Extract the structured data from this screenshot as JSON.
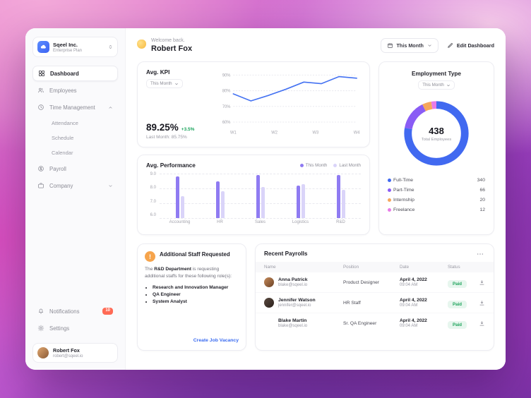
{
  "sidebar": {
    "workspace": {
      "name": "Sqeel Inc.",
      "plan": "Enterprise Plan"
    },
    "nav": {
      "dashboard": "Dashboard",
      "employees": "Employees",
      "time_management": "Time Management",
      "attendance": "Attendance",
      "schedule": "Schedule",
      "calendar": "Calendar",
      "payroll": "Payroll",
      "company": "Company",
      "notifications": "Notifications",
      "notifications_badge": "10",
      "settings": "Settings"
    },
    "user": {
      "name": "Robert Fox",
      "email": "robert@sqeel.io"
    }
  },
  "header": {
    "welcome": "Welcome back.",
    "user_name": "Robert Fox",
    "period_button": "This Month",
    "edit_button": "Edit Dashboard"
  },
  "kpi": {
    "title": "Avg. KPI",
    "filter": "This Month",
    "value": "89.25%",
    "delta": "+3.5%",
    "last_month": "Last Month: 85.75%"
  },
  "performance": {
    "title": "Avg. Performance",
    "legend_this": "This Month",
    "legend_last": "Last Month"
  },
  "employment": {
    "title": "Employment Type",
    "filter": "This Month",
    "total": "438",
    "total_label": "Total Employees",
    "legend": [
      {
        "label": "Full-Time",
        "value": "340",
        "color": "#4169F0"
      },
      {
        "label": "Part-Time",
        "value": "66",
        "color": "#8A5CF5"
      },
      {
        "label": "Internship",
        "value": "20",
        "color": "#F6A75C"
      },
      {
        "label": "Freelance",
        "value": "12",
        "color": "#E87BE8"
      }
    ]
  },
  "staff": {
    "title": "Additional Staff Requested",
    "intro_pre": "The ",
    "dept": "R&D Department",
    "intro_post": " is requesting additional staffs for these following role(s):",
    "roles": [
      "Research and Innovation Manager",
      "QA Engineer",
      "System Analyst"
    ],
    "cta": "Create Job Vacancy"
  },
  "payrolls": {
    "title": "Recent Payrolls",
    "columns": [
      "Name",
      "Position",
      "Date",
      "Status"
    ],
    "rows": [
      {
        "name": "Anna Patrick",
        "email": "blake@sqeel.io",
        "position": "Product Designer",
        "date": "April 4, 2022",
        "time": "09:04 AM",
        "status": "Paid"
      },
      {
        "name": "Jennifer Watson",
        "email": "jennifer@sqeel.io",
        "position": "HR Staff",
        "date": "April 4, 2022",
        "time": "09:04 AM",
        "status": "Paid"
      },
      {
        "name": "Blake Martin",
        "email": "blake@sqeel.io",
        "position": "Sr. QA Engineer",
        "date": "April 4, 2022",
        "time": "09:04 AM",
        "status": "Paid"
      }
    ]
  },
  "chart_data": [
    {
      "id": "kpi_line",
      "type": "line",
      "title": "Avg. KPI",
      "x_labels": [
        "W1",
        "W2",
        "W3",
        "W4"
      ],
      "y_ticks": [
        "90%",
        "80%",
        "70%",
        "60%"
      ],
      "ylim": [
        60,
        90
      ],
      "values": [
        78,
        73.5,
        77,
        81,
        85.5,
        84.5,
        89,
        88
      ],
      "line_color": "#4472F2",
      "grid": "dashed"
    },
    {
      "id": "performance_bars",
      "type": "bar",
      "title": "Avg. Performance",
      "categories": [
        "Accounting",
        "HR",
        "Sales",
        "Logistics",
        "R&D"
      ],
      "ylim": [
        6,
        9
      ],
      "y_ticks": [
        "9.0",
        "8.0",
        "7.0",
        "6.0"
      ],
      "series": [
        {
          "name": "This Month",
          "color": "#8F7BF2",
          "values": [
            8.8,
            8.5,
            8.9,
            8.2,
            8.9
          ]
        },
        {
          "name": "Last Month",
          "color": "#DAD4F9",
          "values": [
            7.5,
            7.8,
            8.1,
            8.3,
            7.9
          ]
        }
      ],
      "legend_position": "top-right",
      "grid": "dashed"
    },
    {
      "id": "employment_donut",
      "type": "pie",
      "title": "Employment Type",
      "labels": [
        "Full-Time",
        "Part-Time",
        "Internship",
        "Freelance"
      ],
      "values": [
        340,
        66,
        20,
        12
      ],
      "colors": [
        "#4169F0",
        "#8A5CF5",
        "#F6A75C",
        "#E87BE8"
      ],
      "total": 438
    }
  ]
}
